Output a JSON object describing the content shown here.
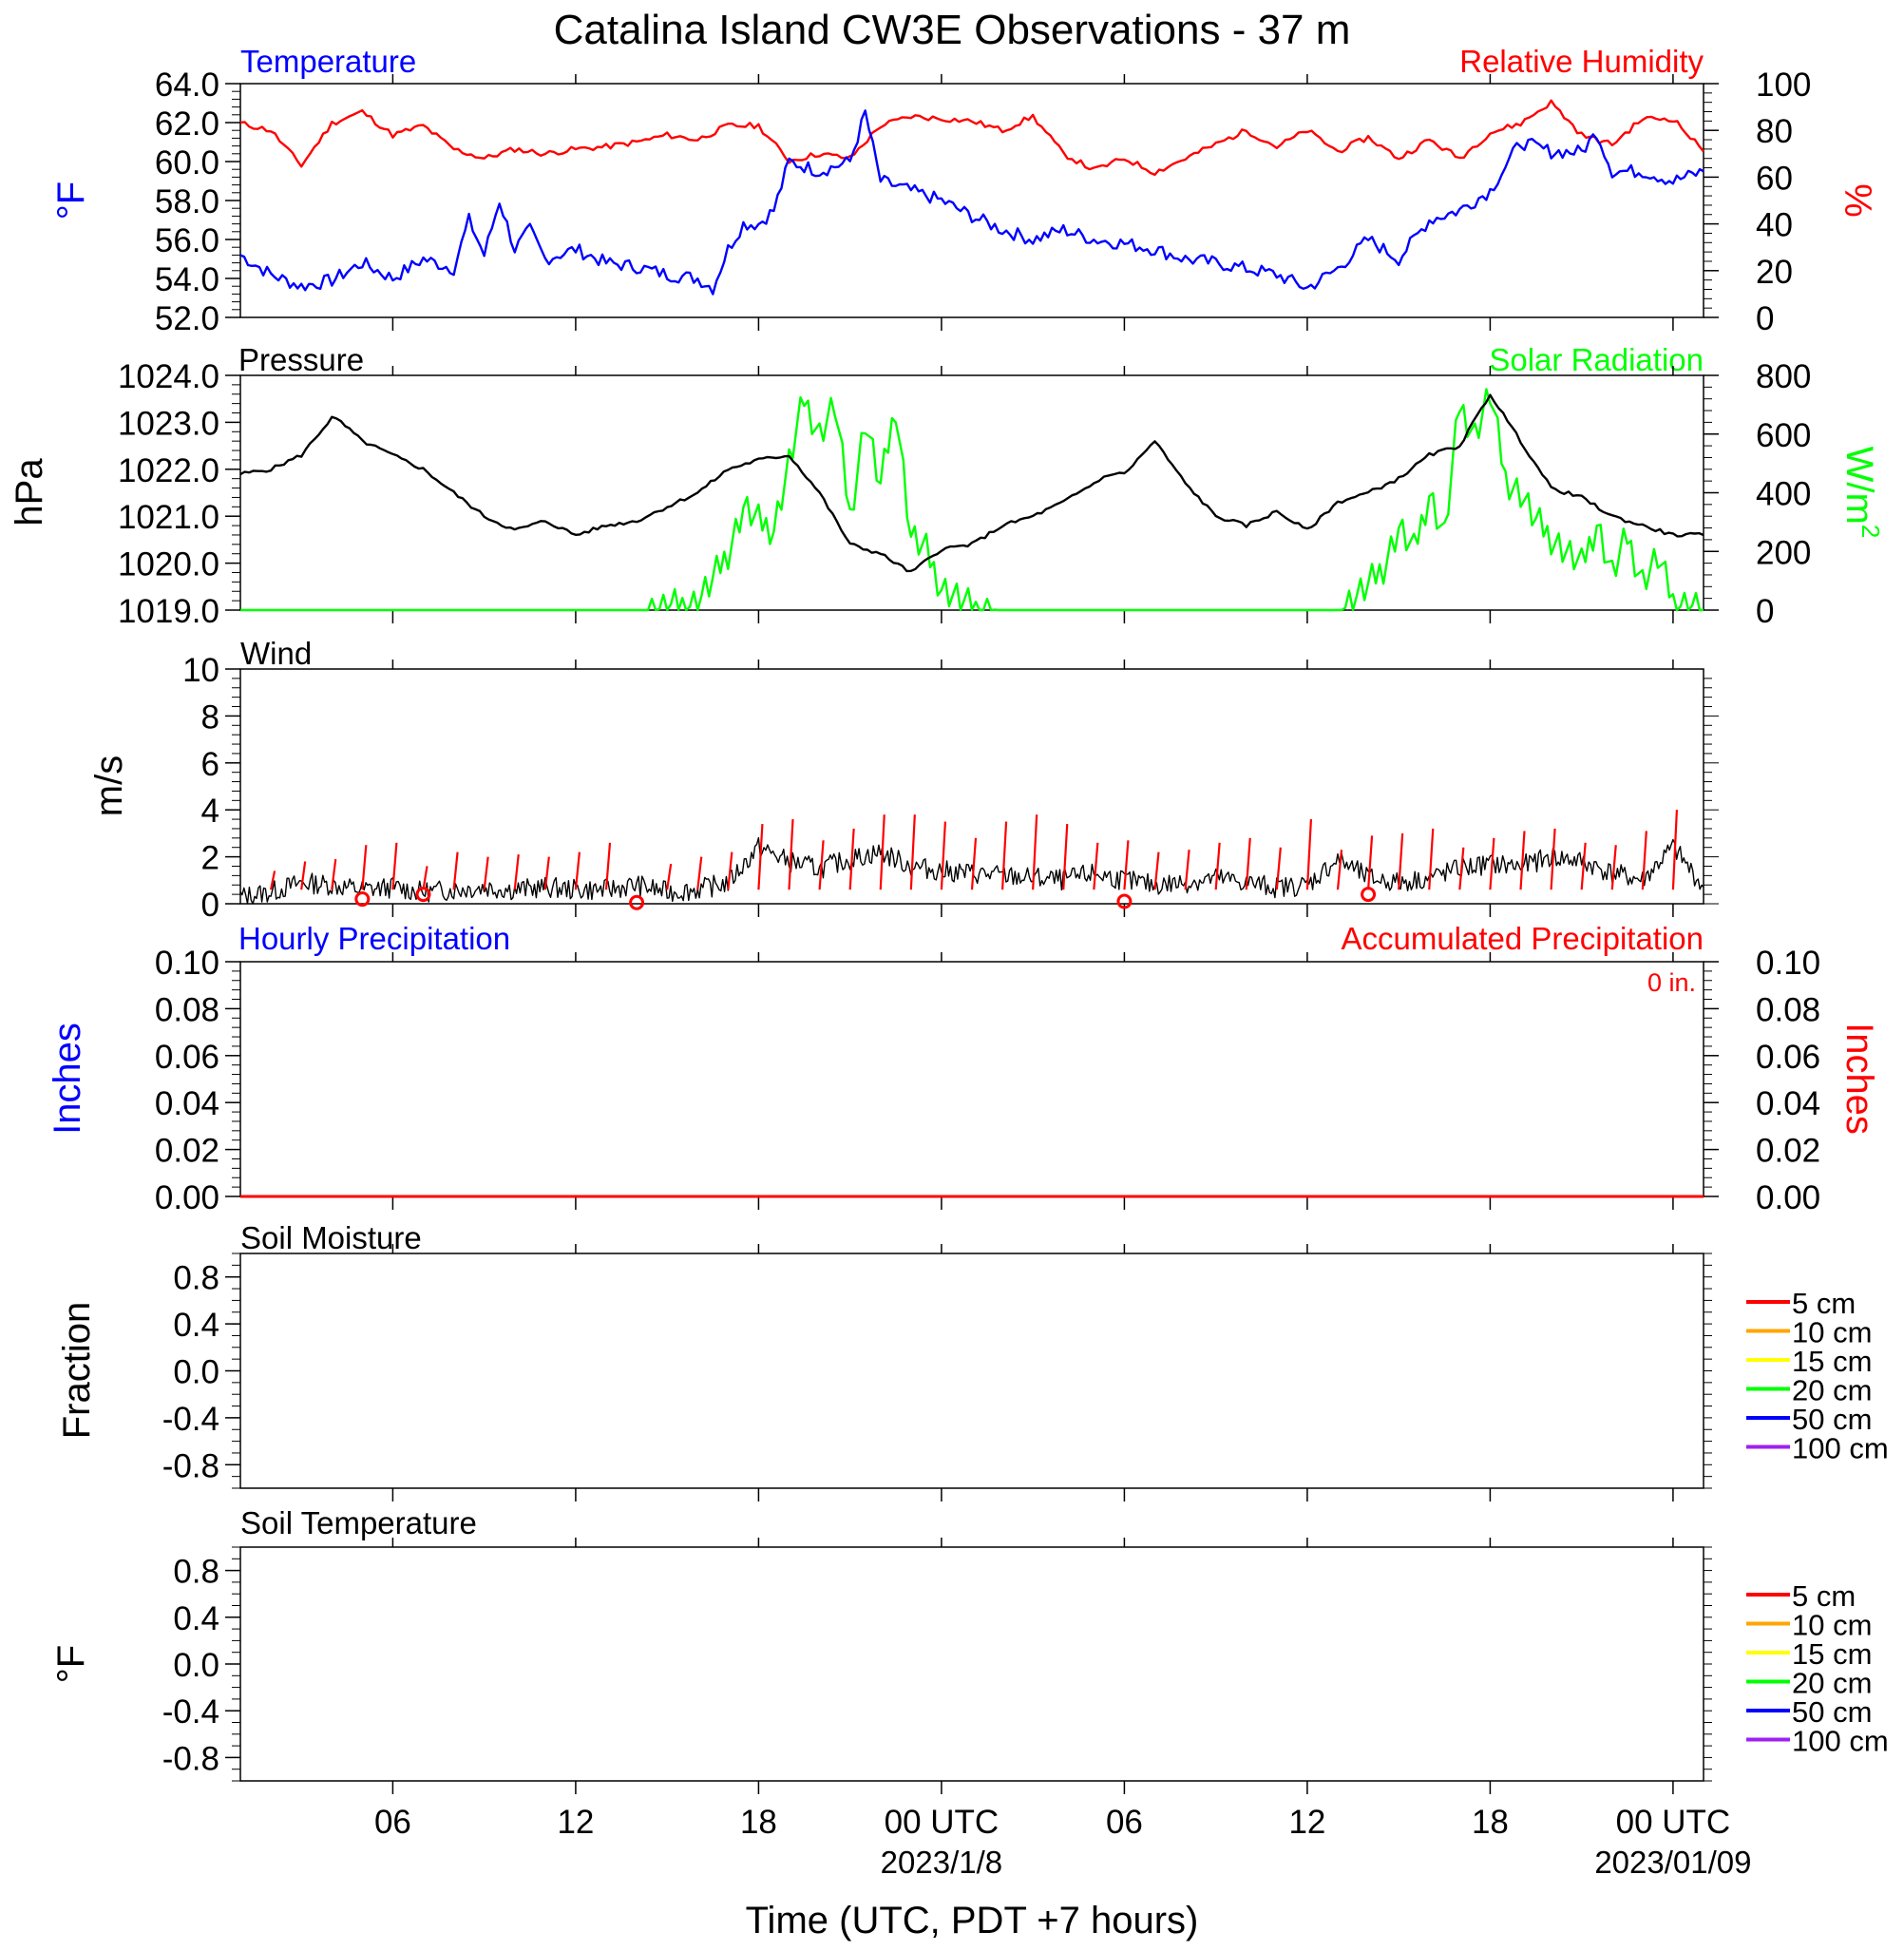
{
  "title": "Catalina Island CW3E Observations - 37 m",
  "colors": {
    "temperature": "#0000ff",
    "humidity": "#ff0000",
    "pressure": "#000000",
    "solar": "#00ff00",
    "wind": "#000000",
    "barb": "#ff0000",
    "hourly_precip": "#0000ff",
    "accum_precip": "#ff0000"
  },
  "xaxis": {
    "label": "Time (UTC, PDT +7 hours)",
    "range_hours": [
      0,
      48
    ],
    "ticks": [
      {
        "hour": 5,
        "label": "06"
      },
      {
        "hour": 11,
        "label": "12"
      },
      {
        "hour": 17,
        "label": "18"
      },
      {
        "hour": 23,
        "label": "00 UTC",
        "sublabel": "2023/1/8"
      },
      {
        "hour": 29,
        "label": "06"
      },
      {
        "hour": 35,
        "label": "12"
      },
      {
        "hour": 41,
        "label": "18"
      },
      {
        "hour": 47,
        "label": "00 UTC",
        "sublabel": "2023/01/09"
      }
    ]
  },
  "panels": {
    "temp_rh": {
      "left_title": "Temperature",
      "right_title": "Relative Humidity",
      "left_unit": "°F",
      "right_unit": "%",
      "left_ticks": [
        "52.0",
        "54.0",
        "56.0",
        "58.0",
        "60.0",
        "62.0",
        "64.0"
      ],
      "right_ticks": [
        "0",
        "20",
        "40",
        "60",
        "80",
        "100"
      ]
    },
    "pressure_solar": {
      "left_title": "Pressure",
      "right_title": "Solar Radiation",
      "left_unit": "hPa",
      "right_unit": "W/m",
      "right_unit_sup": "2",
      "left_ticks": [
        "1019.0",
        "1020.0",
        "1021.0",
        "1022.0",
        "1023.0",
        "1024.0"
      ],
      "right_ticks": [
        "0",
        "200",
        "400",
        "600",
        "800"
      ]
    },
    "wind": {
      "left_title": "Wind",
      "left_unit": "m/s",
      "left_ticks": [
        "0",
        "2",
        "4",
        "6",
        "8",
        "10"
      ]
    },
    "precip": {
      "left_title": "Hourly Precipitation",
      "right_title": "Accumulated Precipitation",
      "total": "0 in.",
      "left_unit": "Inches",
      "right_unit": "Inches",
      "left_ticks": [
        "0.00",
        "0.02",
        "0.04",
        "0.06",
        "0.08",
        "0.10"
      ],
      "right_ticks": [
        "0.00",
        "0.02",
        "0.04",
        "0.06",
        "0.08",
        "0.10"
      ]
    },
    "soil_moisture": {
      "left_title": "Soil Moisture",
      "left_unit": "Fraction",
      "left_ticks": [
        "-0.8",
        "-0.4",
        "0.0",
        "0.4",
        "0.8"
      ],
      "legend": [
        {
          "label": "5 cm",
          "color": "#ff0000"
        },
        {
          "label": "10 cm",
          "color": "#ffa500"
        },
        {
          "label": "15 cm",
          "color": "#ffff00"
        },
        {
          "label": "20 cm",
          "color": "#00ff00"
        },
        {
          "label": "50 cm",
          "color": "#0000ff"
        },
        {
          "label": "100 cm",
          "color": "#a020f0"
        }
      ]
    },
    "soil_temp": {
      "left_title": "Soil Temperature",
      "left_unit": "°F",
      "left_ticks": [
        "-0.8",
        "-0.4",
        "0.0",
        "0.4",
        "0.8"
      ],
      "legend": [
        {
          "label": "5 cm",
          "color": "#ff0000"
        },
        {
          "label": "10 cm",
          "color": "#ffa500"
        },
        {
          "label": "15 cm",
          "color": "#ffff00"
        },
        {
          "label": "20 cm",
          "color": "#00ff00"
        },
        {
          "label": "50 cm",
          "color": "#0000ff"
        },
        {
          "label": "100 cm",
          "color": "#a020f0"
        }
      ]
    }
  },
  "chart_data": [
    {
      "type": "line",
      "title": "Temperature / Relative Humidity",
      "x_unit": "hours since 2023-01-07 01 UTC",
      "ylim": [
        52,
        64
      ],
      "y2lim": [
        0,
        100
      ],
      "series": [
        {
          "name": "Temperature",
          "axis": "left",
          "unit": "°F",
          "x": [
            0,
            1,
            2,
            3,
            4,
            5,
            6,
            7,
            7.5,
            8,
            8.5,
            9,
            9.5,
            10,
            11,
            12,
            13,
            14,
            15,
            15.5,
            16,
            16.5,
            17,
            17.5,
            18,
            19,
            20,
            20.5,
            21,
            22,
            23,
            24,
            25,
            26,
            27,
            28,
            29,
            30,
            31,
            32,
            33,
            34,
            35,
            36,
            37,
            38,
            39,
            40,
            41,
            42,
            43,
            44,
            44.5,
            45,
            46,
            47,
            48
          ],
          "y": [
            55.2,
            54.2,
            53.6,
            53.9,
            54.8,
            54.0,
            55.0,
            54.5,
            57.0,
            55.2,
            58.0,
            55.5,
            56.5,
            55.0,
            55.5,
            54.8,
            54.6,
            54.2,
            54.0,
            53.5,
            55.5,
            56.8,
            56.8,
            57.5,
            60.0,
            59.5,
            60.0,
            62.5,
            59.0,
            58.5,
            58.0,
            57.2,
            56.5,
            56.0,
            56.5,
            56.0,
            55.8,
            55.5,
            55.0,
            54.8,
            54.5,
            54.2,
            53.5,
            54.5,
            56.0,
            55.0,
            57.0,
            57.5,
            58.5,
            61.0,
            60.5,
            60.5,
            61.5,
            59.5,
            59.5,
            59.0,
            59.5
          ]
        },
        {
          "name": "Relative Humidity",
          "axis": "right",
          "unit": "%",
          "x": [
            0,
            1,
            2,
            3,
            4,
            5,
            6,
            7,
            8,
            9,
            10,
            11,
            12,
            13,
            14,
            15,
            16,
            17,
            18,
            19,
            20,
            21,
            22,
            23,
            24,
            25,
            26,
            27,
            28,
            29,
            30,
            31,
            32,
            33,
            34,
            35,
            36,
            37,
            38,
            39,
            40,
            41,
            42,
            43,
            44,
            45,
            46,
            47,
            48
          ],
          "y": [
            83,
            80,
            65,
            83,
            88,
            78,
            82,
            72,
            68,
            72,
            70,
            72,
            73,
            75,
            78,
            76,
            82,
            82,
            67,
            70,
            68,
            82,
            86,
            85,
            84,
            80,
            86,
            70,
            63,
            68,
            62,
            68,
            74,
            80,
            73,
            80,
            71,
            77,
            68,
            76,
            68,
            79,
            83,
            92,
            78,
            74,
            85,
            85,
            71
          ]
        }
      ]
    },
    {
      "type": "line",
      "title": "Pressure / Solar Radiation",
      "x_unit": "hours since 2023-01-07 01 UTC",
      "ylim": [
        1019,
        1024
      ],
      "y2lim": [
        0,
        800
      ],
      "series": [
        {
          "name": "Pressure",
          "axis": "left",
          "unit": "hPa",
          "x": [
            0,
            1,
            2,
            3,
            3.3,
            4,
            5,
            6,
            7,
            8,
            9,
            10,
            11,
            12,
            13,
            14,
            15,
            16,
            17,
            18,
            19,
            20,
            21,
            22,
            23,
            24,
            25,
            26,
            27,
            28,
            28.5,
            29,
            30,
            31,
            32,
            33,
            34,
            35,
            36,
            37,
            38,
            39,
            40,
            41,
            42,
            43,
            44,
            45,
            46,
            47,
            48
          ],
          "y": [
            1021.9,
            1022.0,
            1022.3,
            1023.1,
            1023.0,
            1022.6,
            1022.3,
            1022.0,
            1021.5,
            1021.0,
            1020.7,
            1020.9,
            1020.6,
            1020.8,
            1020.9,
            1021.2,
            1021.5,
            1022.0,
            1022.2,
            1022.3,
            1021.5,
            1020.4,
            1020.2,
            1019.8,
            1020.3,
            1020.4,
            1020.8,
            1021.0,
            1021.3,
            1021.7,
            1021.9,
            1021.9,
            1022.6,
            1021.7,
            1021.0,
            1020.8,
            1021.1,
            1020.7,
            1021.3,
            1021.5,
            1021.8,
            1022.3,
            1022.5,
            1023.6,
            1022.6,
            1021.6,
            1021.4,
            1021.0,
            1020.8,
            1020.6,
            1020.6
          ]
        },
        {
          "name": "Solar Radiation",
          "axis": "right",
          "unit": "W/m2",
          "x": [
            0,
            13,
            14,
            15,
            15.5,
            16,
            16.5,
            17,
            17.5,
            18,
            18.5,
            19,
            19.5,
            20,
            20.5,
            21,
            21.5,
            22,
            22.5,
            23,
            24,
            25,
            36,
            37,
            37.5,
            38,
            38.5,
            39,
            39.5,
            40,
            40.5,
            41,
            41.5,
            42,
            42.5,
            43,
            43.5,
            44,
            44.5,
            45,
            45.5,
            46,
            46.5,
            47,
            47.5,
            48
          ],
          "y": [
            0,
            0,
            5,
            30,
            100,
            200,
            350,
            300,
            280,
            500,
            720,
            600,
            700,
            320,
            650,
            420,
            700,
            250,
            200,
            80,
            5,
            0,
            0,
            80,
            150,
            280,
            200,
            400,
            250,
            700,
            600,
            740,
            450,
            400,
            300,
            250,
            200,
            150,
            300,
            120,
            250,
            100,
            180,
            30,
            20,
            0
          ]
        }
      ]
    },
    {
      "type": "line",
      "title": "Wind",
      "x_unit": "hours since 2023-01-07 01 UTC",
      "ylim": [
        0,
        10
      ],
      "series": [
        {
          "name": "Wind speed",
          "unit": "m/s",
          "x": [
            0,
            1,
            2,
            3,
            4,
            5,
            6,
            7,
            8,
            9,
            10,
            11,
            12,
            13,
            14,
            15,
            16,
            17,
            18,
            19,
            20,
            21,
            22,
            23,
            24,
            25,
            26,
            27,
            28,
            29,
            30,
            31,
            32,
            33,
            34,
            35,
            36,
            37,
            38,
            39,
            40,
            41,
            42,
            43,
            44,
            45,
            46,
            47,
            48
          ],
          "y": [
            0.3,
            0.5,
            0.9,
            0.8,
            0.6,
            0.7,
            0.5,
            0.6,
            0.7,
            0.6,
            0.7,
            0.6,
            0.6,
            0.8,
            0.5,
            0.6,
            0.9,
            2.4,
            1.8,
            1.5,
            1.9,
            2.2,
            1.6,
            1.4,
            1.3,
            1.2,
            1.1,
            1.0,
            1.3,
            1.0,
            0.8,
            0.9,
            1.1,
            0.9,
            0.7,
            0.8,
            1.9,
            1.1,
            0.9,
            1.1,
            1.5,
            1.7,
            1.6,
            2.0,
            1.8,
            1.3,
            1.0,
            2.4,
            0.7
          ]
        },
        {
          "name": "Barb speeds",
          "unit": "m/s",
          "x": [
            1,
            2,
            3,
            4,
            5,
            6,
            7,
            8,
            9,
            10,
            11,
            12,
            14,
            15,
            16,
            17,
            18,
            19,
            20,
            21,
            22,
            23,
            24,
            25,
            26,
            27,
            28,
            29,
            30,
            31,
            32,
            33,
            34,
            35,
            36,
            37,
            38,
            39,
            40,
            41,
            42,
            43,
            44,
            45,
            46,
            47
          ],
          "y": [
            1.4,
            1.8,
            1.9,
            2.5,
            2.6,
            1.6,
            2.2,
            2.0,
            2.1,
            2.0,
            2.2,
            2.6,
            1.7,
            2.0,
            2.2,
            3.4,
            3.6,
            2.7,
            3.2,
            3.8,
            3.8,
            3.5,
            2.8,
            3.5,
            3.8,
            3.4,
            2.6,
            2.7,
            2.2,
            2.3,
            2.6,
            2.8,
            2.4,
            3.6,
            2.3,
            2.9,
            3.0,
            3.2,
            2.4,
            2.8,
            3.1,
            3.2,
            2.6,
            2.5,
            3.1,
            4.0
          ]
        },
        {
          "name": "Calm markers",
          "unit": "m/s",
          "x": [
            4,
            6,
            13,
            29,
            37
          ],
          "y": [
            0.2,
            0.4,
            0.05,
            0.1,
            0.4
          ]
        }
      ]
    },
    {
      "type": "line",
      "title": "Hourly / Accumulated Precipitation",
      "x_unit": "hours since 2023-01-07 01 UTC",
      "ylim": [
        0,
        0.1
      ],
      "y2lim": [
        0,
        0.1
      ],
      "series": [
        {
          "name": "Hourly Precipitation",
          "axis": "left",
          "unit": "in",
          "x": [
            0,
            48
          ],
          "y": [
            0,
            0
          ]
        },
        {
          "name": "Accumulated Precipitation",
          "axis": "right",
          "unit": "in",
          "x": [
            0,
            48
          ],
          "y": [
            0,
            0
          ]
        }
      ]
    },
    {
      "type": "line",
      "title": "Soil Moisture",
      "ylim": [
        -1,
        1
      ],
      "series": []
    },
    {
      "type": "line",
      "title": "Soil Temperature",
      "ylim": [
        -1,
        1
      ],
      "series": []
    }
  ]
}
